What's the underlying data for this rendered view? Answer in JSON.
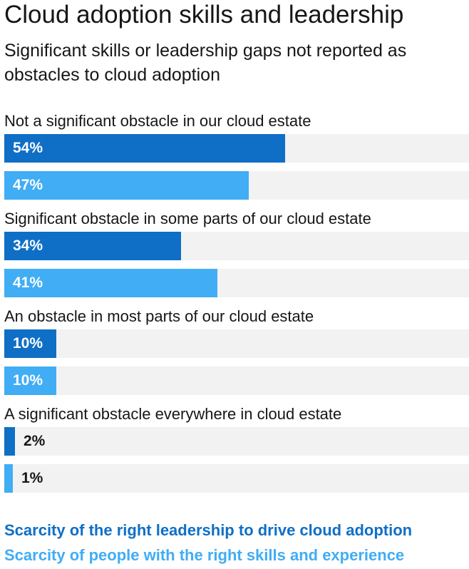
{
  "title": "Cloud adoption skills and leadership",
  "subtitle": "Significant skills or leadership gaps not reported as obstacles to cloud adoption",
  "colors": {
    "leadership": "#0f6fc6",
    "skills": "#40adf5",
    "track": "#f2f2f2",
    "label_inside": "#ffffff",
    "label_outside": "#161616"
  },
  "chart_data": {
    "type": "bar",
    "orientation": "horizontal",
    "title": "Cloud adoption skills and leadership",
    "subtitle": "Significant skills or leadership gaps not reported as obstacles to cloud adoption",
    "categories": [
      "Not a significant obstacle in our cloud estate",
      "Significant obstacle in some parts of our cloud estate",
      "An obstacle in most parts of our cloud estate",
      "A significant obstacle everywhere in cloud estate"
    ],
    "series": [
      {
        "name": "Scarcity of the right leadership to drive cloud adoption",
        "values": [
          54,
          34,
          10,
          2
        ],
        "labels": [
          "54%",
          "34%",
          "10%",
          "2%"
        ]
      },
      {
        "name": "Scarcity of people with the right skills and experience",
        "values": [
          47,
          41,
          10,
          1
        ],
        "labels": [
          "47%",
          "41%",
          "10%",
          "1%"
        ]
      }
    ],
    "xlim": [
      0,
      100
    ],
    "unit": "%",
    "legend_position": "bottom",
    "grid": false
  }
}
